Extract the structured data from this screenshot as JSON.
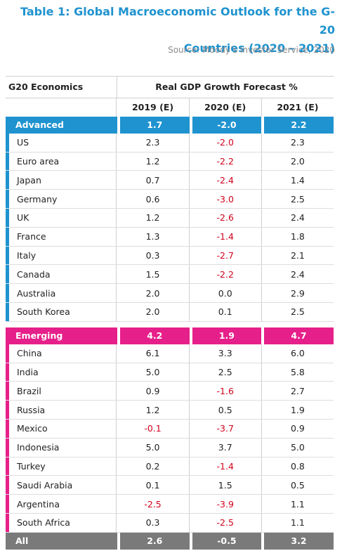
{
  "title_line1": "Table 1: Global Macroeconomic Outlook for the G-20",
  "title_line2": "Countries (2020 – 2021)",
  "source": "Source: Moody’s Investor Service, 2020",
  "header": {
    "col0": "G20 Economics",
    "group": "Real GDP Growth Forecast %",
    "years": [
      "2019 (E)",
      "2020 (E)",
      "2021 (E)"
    ]
  },
  "colors": {
    "advanced": "#1f93cf",
    "emerging": "#e6208a",
    "all": "#7a7a7a",
    "negative": "#d0021b"
  },
  "advanced": {
    "label": "Advanced",
    "values": [
      "1.7",
      "-2.0",
      "2.2"
    ],
    "countries": [
      {
        "name": "US",
        "values": [
          "2.3",
          "-2.0",
          "2.3"
        ]
      },
      {
        "name": "Euro area",
        "values": [
          "1.2",
          "-2.2",
          "2.0"
        ]
      },
      {
        "name": "Japan",
        "values": [
          "0.7",
          "-2.4",
          "1.4"
        ]
      },
      {
        "name": "Germany",
        "values": [
          "0.6",
          "-3.0",
          "2.5"
        ]
      },
      {
        "name": "UK",
        "values": [
          "1.2",
          "-2.6",
          "2.4"
        ]
      },
      {
        "name": "France",
        "values": [
          "1.3",
          "-1.4",
          "1.8"
        ]
      },
      {
        "name": "Italy",
        "values": [
          "0.3",
          "-2.7",
          "2.1"
        ]
      },
      {
        "name": "Canada",
        "values": [
          "1.5",
          "-2.2",
          "2.4"
        ]
      },
      {
        "name": "Australia",
        "values": [
          "2.0",
          "0.0",
          "2.9"
        ]
      },
      {
        "name": "South Korea",
        "values": [
          "2.0",
          "0.1",
          "2.5"
        ]
      }
    ]
  },
  "emerging": {
    "label": "Emerging",
    "values": [
      "4.2",
      "1.9",
      "4.7"
    ],
    "countries": [
      {
        "name": "China",
        "values": [
          "6.1",
          "3.3",
          "6.0"
        ]
      },
      {
        "name": "India",
        "values": [
          "5.0",
          "2.5",
          "5.8"
        ]
      },
      {
        "name": "Brazil",
        "values": [
          "0.9",
          "-1.6",
          "2.7"
        ]
      },
      {
        "name": "Russia",
        "values": [
          "1.2",
          "0.5",
          "1.9"
        ]
      },
      {
        "name": "Mexico",
        "values": [
          "-0.1",
          "-3.7",
          "0.9"
        ]
      },
      {
        "name": "Indonesia",
        "values": [
          "5.0",
          "3.7",
          "5.0"
        ]
      },
      {
        "name": "Turkey",
        "values": [
          "0.2",
          "-1.4",
          "0.8"
        ]
      },
      {
        "name": "Saudi Arabia",
        "values": [
          "0.1",
          "1.5",
          "0.5"
        ]
      },
      {
        "name": "Argentina",
        "values": [
          "-2.5",
          "-3.9",
          "1.1"
        ]
      },
      {
        "name": "South Africa",
        "values": [
          "0.3",
          "-2.5",
          "1.1"
        ]
      }
    ]
  },
  "all": {
    "label": "All",
    "values": [
      "2.6",
      "-0.5",
      "3.2"
    ]
  }
}
